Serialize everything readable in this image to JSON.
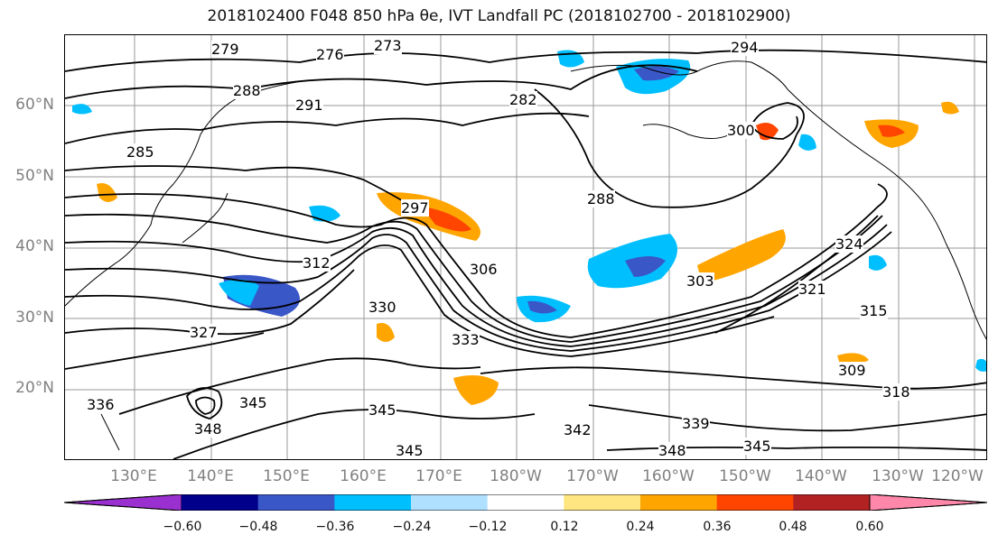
{
  "title": "2018102400 F048 850 hPa θe, IVT Landfall PC (2018102700 - 2018102900)",
  "lat_labels": [
    "60°N",
    "50°N",
    "40°N",
    "30°N",
    "20°N"
  ],
  "lon_labels": [
    "130°E",
    "140°E",
    "150°E",
    "160°E",
    "170°E",
    "180°W",
    "170°W",
    "160°W",
    "150°W",
    "140°W",
    "130°W",
    "120°W"
  ],
  "contour_labels": [
    "273",
    "276",
    "279",
    "288",
    "291",
    "282",
    "294",
    "300",
    "285",
    "288",
    "297",
    "306",
    "312",
    "303",
    "324",
    "321",
    "330",
    "327",
    "315",
    "333",
    "309",
    "318",
    "342",
    "345",
    "348",
    "345",
    "345",
    "339",
    "336",
    "348",
    "345"
  ],
  "colorbar": {
    "ticks": [
      "−0.60",
      "−0.48",
      "−0.36",
      "−0.24",
      "−0.12",
      "0.12",
      "0.24",
      "0.36",
      "0.48",
      "0.60"
    ],
    "colors": [
      "#9b30d0",
      "#00008b",
      "#3a57c8",
      "#00bfff",
      "#b0e0ff",
      "#ffffff",
      "#ffe680",
      "#ffa500",
      "#ff4500",
      "#b22222",
      "#ff88aa"
    ]
  }
}
